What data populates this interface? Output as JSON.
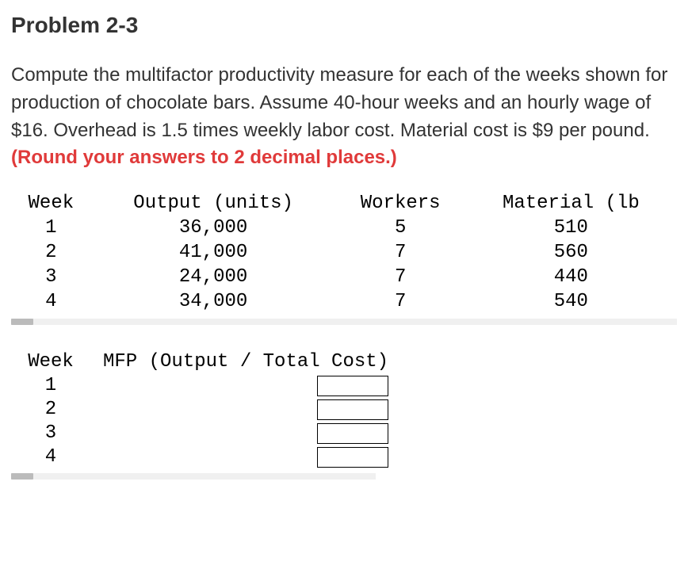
{
  "title": "Problem 2-3",
  "prompt_main": "Compute the multifactor productivity measure for each of the weeks shown for production of chocolate bars. Assume 40-hour weeks and an hourly wage of $16. Overhead is 1.5 times weekly labor cost. Material cost is $9 per pound.",
  "prompt_warn": "(Round your answers to 2 decimal places.)",
  "data_table": {
    "columns": [
      "Week",
      "Output (units)",
      "Workers",
      "Material (lb"
    ],
    "rows": [
      [
        "1",
        "36,000",
        "5",
        "510"
      ],
      [
        "2",
        "41,000",
        "7",
        "560"
      ],
      [
        "3",
        "24,000",
        "7",
        "440"
      ],
      [
        "4",
        "34,000",
        "7",
        "540"
      ]
    ]
  },
  "answer_table": {
    "columns": [
      "Week",
      "MFP (Output / Total Cost)"
    ],
    "weeks": [
      "1",
      "2",
      "3",
      "4"
    ]
  }
}
